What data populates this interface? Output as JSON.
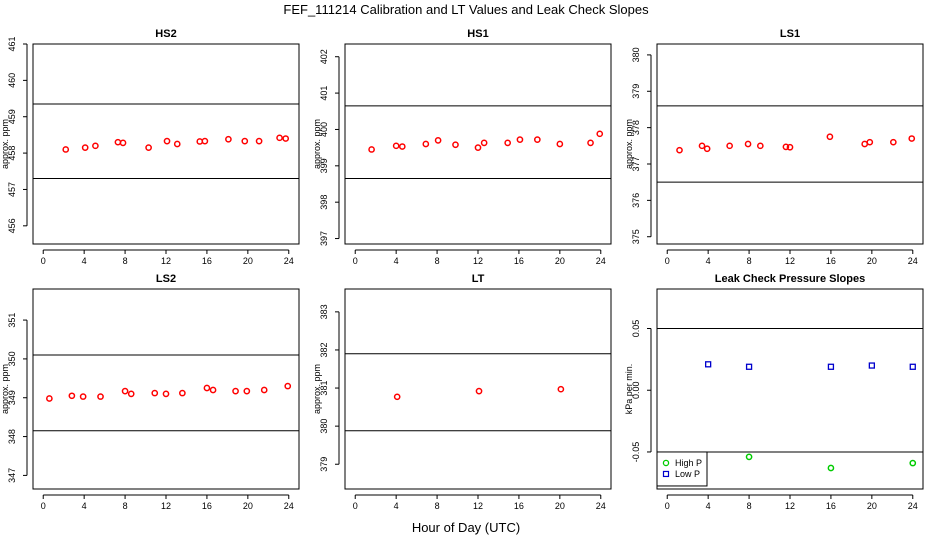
{
  "figure": {
    "title": "FEF_111214  Calibration and LT Values and Leak Check Slopes",
    "xlabel": "Hour of Day (UTC)"
  },
  "chart_data": [
    {
      "type": "scatter",
      "title": "HS2",
      "ylabel": "approx. ppm",
      "xlim": [
        -1,
        25
      ],
      "ylim": [
        455.5,
        461
      ],
      "xticks": [
        0,
        4,
        8,
        12,
        16,
        20,
        24
      ],
      "yticks": [
        456,
        457,
        458,
        459,
        460,
        461
      ],
      "hlines": [
        459.35,
        457.3
      ],
      "series": [
        {
          "color": "#ff0000",
          "marker": "circle",
          "x": [
            2.2,
            4.1,
            5.1,
            7.3,
            7.8,
            10.3,
            12.1,
            13.1,
            15.3,
            15.8,
            18.1,
            19.7,
            21.1,
            23.1,
            23.7
          ],
          "y": [
            458.1,
            458.15,
            458.2,
            458.3,
            458.28,
            458.15,
            458.33,
            458.25,
            458.32,
            458.33,
            458.38,
            458.33,
            458.33,
            458.42,
            458.4
          ]
        }
      ]
    },
    {
      "type": "scatter",
      "title": "HS1",
      "ylabel": "approx. ppm",
      "xlim": [
        -1,
        25
      ],
      "ylim": [
        396.85,
        402.35
      ],
      "xticks": [
        0,
        4,
        8,
        12,
        16,
        20,
        24
      ],
      "yticks": [
        397,
        398,
        399,
        400,
        401,
        402
      ],
      "hlines": [
        400.65,
        398.65
      ],
      "series": [
        {
          "color": "#ff0000",
          "marker": "circle",
          "x": [
            1.6,
            4.0,
            4.6,
            6.9,
            8.1,
            9.8,
            12.0,
            12.6,
            14.9,
            16.1,
            17.8,
            20.0,
            23.0,
            23.9
          ],
          "y": [
            399.45,
            399.55,
            399.53,
            399.6,
            399.7,
            399.58,
            399.5,
            399.63,
            399.63,
            399.72,
            399.72,
            399.6,
            399.63,
            399.88
          ]
        }
      ]
    },
    {
      "type": "scatter",
      "title": "LS1",
      "ylabel": "approx. ppm",
      "xlim": [
        -1,
        25
      ],
      "ylim": [
        374.8,
        380.3
      ],
      "xticks": [
        0,
        4,
        8,
        12,
        16,
        20,
        24
      ],
      "yticks": [
        375,
        376,
        377,
        378,
        379,
        380
      ],
      "hlines": [
        378.6,
        376.5
      ],
      "series": [
        {
          "color": "#ff0000",
          "marker": "circle",
          "x": [
            1.2,
            3.4,
            3.9,
            6.1,
            7.9,
            9.1,
            11.6,
            12.0,
            15.9,
            19.3,
            19.8,
            22.1,
            23.9
          ],
          "y": [
            377.38,
            377.5,
            377.42,
            377.5,
            377.55,
            377.5,
            377.47,
            377.46,
            377.75,
            377.55,
            377.6,
            377.6,
            377.7
          ]
        }
      ]
    },
    {
      "type": "scatter",
      "title": "LS2",
      "ylabel": "approx. ppm",
      "xlim": [
        -1,
        25
      ],
      "ylim": [
        346.65,
        351.8
      ],
      "xticks": [
        0,
        4,
        8,
        12,
        16,
        20,
        24
      ],
      "yticks": [
        347,
        348,
        349,
        350,
        351
      ],
      "hlines": [
        350.1,
        348.15
      ],
      "series": [
        {
          "color": "#ff0000",
          "marker": "circle",
          "x": [
            0.6,
            2.8,
            3.9,
            5.6,
            8.0,
            8.6,
            10.9,
            12.0,
            13.6,
            16.0,
            16.6,
            18.8,
            19.9,
            21.6,
            23.9
          ],
          "y": [
            348.98,
            349.05,
            349.03,
            349.03,
            349.17,
            349.1,
            349.12,
            349.1,
            349.12,
            349.25,
            349.2,
            349.17,
            349.17,
            349.2,
            349.3
          ]
        }
      ]
    },
    {
      "type": "scatter",
      "title": "LT",
      "ylabel": "approx. ppm",
      "xlim": [
        -1,
        25
      ],
      "ylim": [
        378.35,
        383.6
      ],
      "xticks": [
        0,
        4,
        8,
        12,
        16,
        20,
        24
      ],
      "yticks": [
        379,
        380,
        381,
        382,
        383
      ],
      "hlines": [
        381.9,
        379.88
      ],
      "series": [
        {
          "color": "#ff0000",
          "marker": "circle",
          "x": [
            4.1,
            12.1,
            20.1
          ],
          "y": [
            380.77,
            380.92,
            380.97
          ]
        }
      ]
    },
    {
      "type": "scatter",
      "title": "Leak Check Pressure Slopes",
      "ylabel": "kPa per min.",
      "xlim": [
        -1,
        25
      ],
      "ylim": [
        -0.08,
        0.082
      ],
      "xticks": [
        0,
        4,
        8,
        12,
        16,
        20,
        24
      ],
      "yticks": [
        -0.05,
        0.0,
        0.05
      ],
      "ytick_labels": [
        "-0.05",
        "0.00",
        "0.05"
      ],
      "hlines": [
        0.05,
        -0.05
      ],
      "legend": {
        "position": "bottom-left",
        "entries": [
          "High P",
          "Low P"
        ]
      },
      "series": [
        {
          "name": "High P",
          "color": "#00cc00",
          "marker": "circle",
          "x": [
            8.0,
            16.0,
            24.0
          ],
          "y": [
            -0.054,
            -0.063,
            -0.059
          ]
        },
        {
          "name": "Low P",
          "color": "#0000cc",
          "marker": "square",
          "x": [
            4.0,
            8.0,
            16.0,
            20.0,
            24.0
          ],
          "y": [
            0.021,
            0.019,
            0.019,
            0.02,
            0.019
          ]
        }
      ]
    }
  ]
}
